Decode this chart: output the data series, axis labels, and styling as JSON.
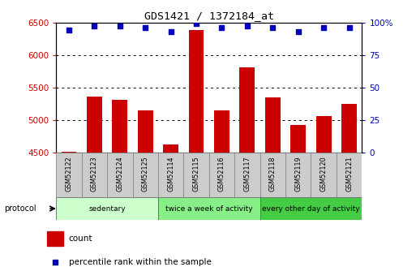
{
  "title": "GDS1421 / 1372184_at",
  "samples": [
    "GSM52122",
    "GSM52123",
    "GSM52124",
    "GSM52125",
    "GSM52114",
    "GSM52115",
    "GSM52116",
    "GSM52117",
    "GSM52118",
    "GSM52119",
    "GSM52120",
    "GSM52121"
  ],
  "counts": [
    4510,
    5360,
    5310,
    5150,
    4620,
    6380,
    5150,
    5810,
    5350,
    4930,
    5060,
    5250
  ],
  "percentile_ranks": [
    94,
    97,
    97,
    96,
    93,
    99,
    96,
    97,
    96,
    93,
    96,
    96
  ],
  "ylim_left": [
    4500,
    6500
  ],
  "ylim_right": [
    0,
    100
  ],
  "yticks_left": [
    4500,
    5000,
    5500,
    6000,
    6500
  ],
  "yticks_right": [
    0,
    25,
    50,
    75,
    100
  ],
  "bar_color": "#cc0000",
  "dot_color": "#0000bb",
  "groups": [
    {
      "label": "sedentary",
      "start": 0,
      "end": 4,
      "color": "#ccffcc"
    },
    {
      "label": "twice a week of activity",
      "start": 4,
      "end": 8,
      "color": "#88ee88"
    },
    {
      "label": "every other day of activity",
      "start": 8,
      "end": 12,
      "color": "#44cc44"
    }
  ],
  "protocol_label": "protocol",
  "legend_count_label": "count",
  "legend_pct_label": "percentile rank within the sample",
  "tick_label_color_left": "#cc0000",
  "tick_label_color_right": "#0000bb",
  "title_color": "#000000",
  "background_color": "#ffffff",
  "sample_box_color": "#cccccc",
  "sample_box_edge": "#888888"
}
